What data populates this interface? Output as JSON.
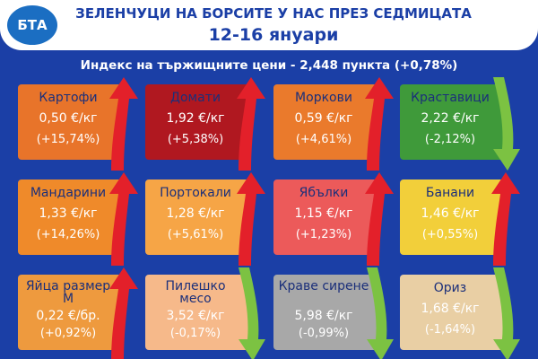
{
  "header": {
    "logo": "БТА",
    "title": "ЗЕЛЕНЧУЦИ НА БОРСИТЕ У НАС ПРЕЗ СЕДМИЦАТА",
    "date": "12-16 януари"
  },
  "index": "Индекс на тържищните цени - 2,448 пункта (+0,78%)",
  "cards": [
    {
      "name": "Картофи",
      "price": "0,50 €/кг",
      "change": "(+15,74%)",
      "color": "#e8742a",
      "trend": "up"
    },
    {
      "name": "Домати",
      "price": "1,92 €/кг",
      "change": "(+5,38%)",
      "color": "#b01820",
      "trend": "up"
    },
    {
      "name": "Моркови",
      "price": "0,59 €/кг",
      "change": "(+4,61%)",
      "color": "#ea7a2c",
      "trend": "up"
    },
    {
      "name": "Краставици",
      "price": "2,22 €/кг",
      "change": "(-2,12%)",
      "color": "#3f9a3a",
      "trend": "down"
    },
    {
      "name": "Мандарини",
      "price": "1,33 €/кг",
      "change": "(+14,26%)",
      "color": "#ef8a2a",
      "trend": "up"
    },
    {
      "name": "Портокали",
      "price": "1,28 €/кг",
      "change": "(+5,61%)",
      "color": "#f6a546",
      "trend": "up"
    },
    {
      "name": "Ябълки",
      "price": "1,15 €/кг",
      "change": "(+1,23%)",
      "color": "#ec5a5a",
      "trend": "up"
    },
    {
      "name": "Банани",
      "price": "1,46 €/кг",
      "change": "(+0,55%)",
      "color": "#f2cf3a",
      "trend": "up"
    },
    {
      "name": "Яйца размер М",
      "price": "0,22 €/бр.",
      "change": "(+0,92%)",
      "color": "#ee9a3e",
      "trend": "up"
    },
    {
      "name": "Пилешко месо",
      "price": "3,52 €/кг",
      "change": "(-0,17%)",
      "color": "#f6b98a",
      "trend": "down"
    },
    {
      "name": "Краве сирене",
      "price": "5,98 €/кг",
      "change": "(-0,99%)",
      "color": "#a8a8a8",
      "trend": "down"
    },
    {
      "name": "Ориз",
      "price": "1,68 €/кг",
      "change": "(-1,64%)",
      "color": "#e9cfa4",
      "trend": "down"
    }
  ]
}
